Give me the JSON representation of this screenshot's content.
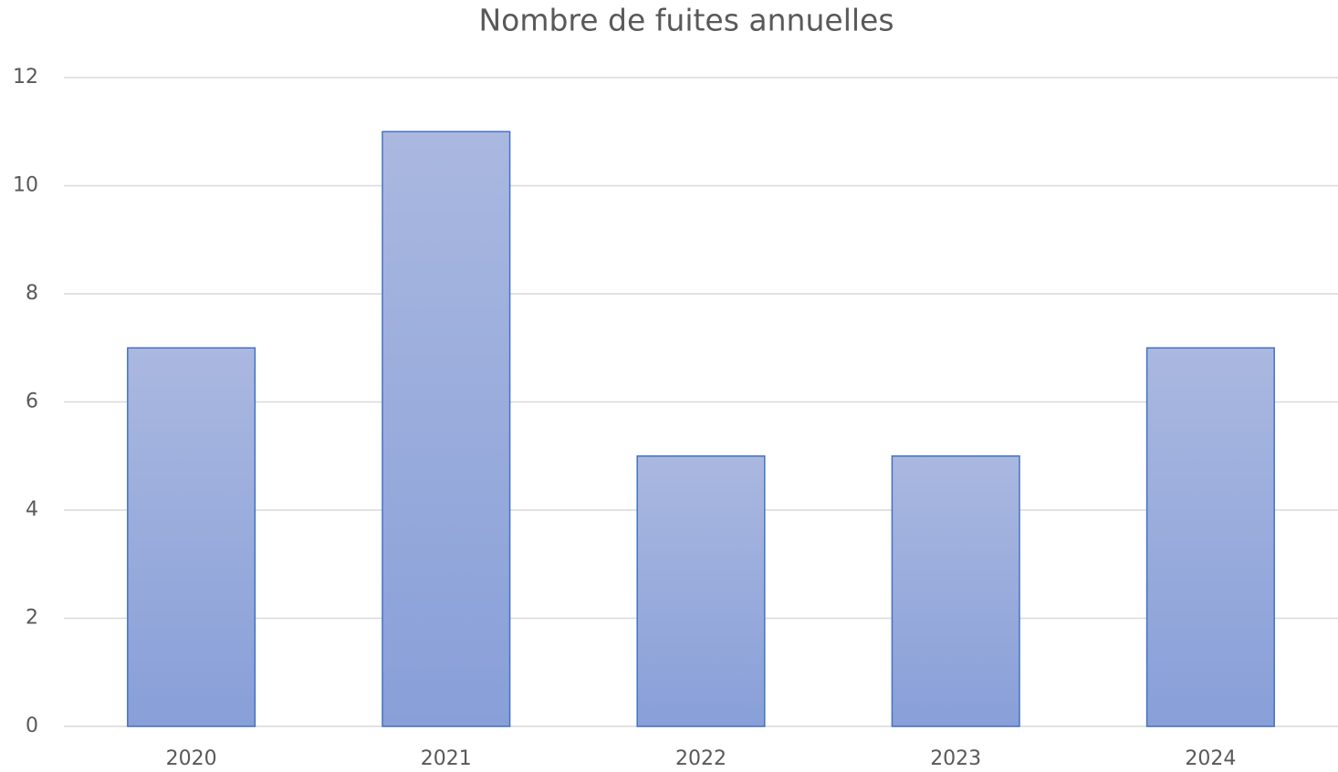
{
  "chart_data": {
    "type": "bar",
    "title": "Nombre de fuites annuelles",
    "categories": [
      "2020",
      "2021",
      "2022",
      "2023",
      "2024"
    ],
    "values": [
      7,
      11,
      5,
      5,
      7
    ],
    "color": "#4472c4",
    "ylim": [
      0,
      12
    ],
    "yticks": [
      0,
      2,
      4,
      6,
      8,
      10,
      12
    ],
    "grid": true
  }
}
